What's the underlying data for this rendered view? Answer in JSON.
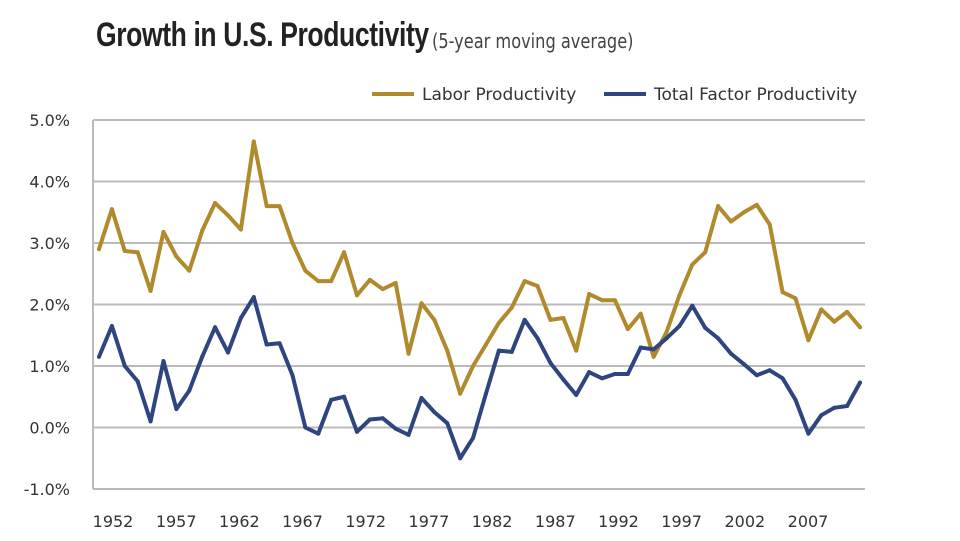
{
  "chart_data": {
    "type": "line",
    "title": "Growth in U.S. Productivity",
    "subtitle": "(5-year moving average)",
    "xlabel": "",
    "ylabel": "",
    "x": [
      1951,
      1952,
      1953,
      1954,
      1955,
      1956,
      1957,
      1958,
      1959,
      1960,
      1961,
      1962,
      1963,
      1964,
      1965,
      1966,
      1967,
      1968,
      1969,
      1970,
      1971,
      1972,
      1973,
      1974,
      1975,
      1976,
      1977,
      1978,
      1979,
      1980,
      1981,
      1982,
      1983,
      1984,
      1985,
      1986,
      1987,
      1988,
      1989,
      1990,
      1991,
      1992,
      1993,
      1994,
      1995,
      1996,
      1997,
      1998,
      1999,
      2000,
      2001,
      2002,
      2003,
      2004,
      2005,
      2006,
      2007,
      2008,
      2009,
      2010
    ],
    "x_tick_labels": [
      "1952",
      "1957",
      "1962",
      "1967",
      "1972",
      "1977",
      "1982",
      "1987",
      "1992",
      "1997",
      "2002",
      "2007"
    ],
    "y_tick_labels": [
      "5.0%",
      "4.0%",
      "3.0%",
      "2.0%",
      "1.0%",
      "0.0%",
      "-1.0%"
    ],
    "ylim": [
      -1.0,
      5.0
    ],
    "grid": true,
    "legend_position": "top-right",
    "series": [
      {
        "name": "Labor Productivity",
        "color": "#b08a2c",
        "values": [
          2.9,
          3.55,
          2.87,
          2.85,
          2.22,
          3.18,
          2.78,
          2.55,
          3.2,
          3.65,
          3.45,
          3.22,
          4.65,
          3.6,
          3.6,
          3.0,
          2.55,
          2.38,
          2.38,
          2.85,
          2.15,
          2.4,
          2.25,
          2.35,
          1.2,
          2.02,
          1.75,
          1.25,
          0.55,
          1.0,
          1.35,
          1.7,
          1.95,
          2.38,
          2.3,
          1.75,
          1.78,
          1.25,
          2.17,
          2.07,
          2.07,
          1.6,
          1.85,
          1.15,
          1.55,
          2.15,
          2.65,
          2.85,
          3.6,
          3.35,
          3.5,
          3.62,
          3.3,
          2.2,
          2.1,
          1.42,
          1.92,
          1.72,
          1.88,
          1.63
        ]
      },
      {
        "name": "Total Factor Productivity",
        "color": "#2e4580",
        "values": [
          1.15,
          1.65,
          1.0,
          0.75,
          0.1,
          1.08,
          0.3,
          0.6,
          1.15,
          1.63,
          1.22,
          1.78,
          2.12,
          1.35,
          1.37,
          0.85,
          0.0,
          -0.1,
          0.45,
          0.5,
          -0.07,
          0.13,
          0.15,
          -0.02,
          -0.12,
          0.48,
          0.25,
          0.07,
          -0.5,
          -0.17,
          0.55,
          1.25,
          1.23,
          1.75,
          1.45,
          1.05,
          0.78,
          0.53,
          0.9,
          0.8,
          0.87,
          0.87,
          1.3,
          1.27,
          1.45,
          1.65,
          1.98,
          1.62,
          1.45,
          1.2,
          1.03,
          0.85,
          0.93,
          0.8,
          0.45,
          -0.1,
          0.2,
          0.32,
          0.35,
          0.73
        ]
      }
    ]
  }
}
